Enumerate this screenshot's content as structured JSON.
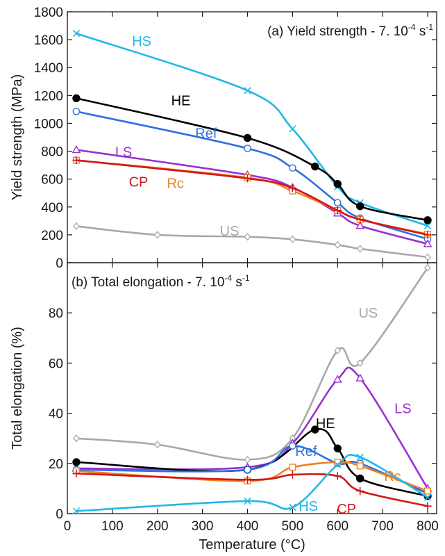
{
  "chart_data": {
    "type": "line",
    "xlabel": "Temperature (°C)",
    "xlim": [
      0,
      820
    ],
    "xticks": [
      0,
      100,
      200,
      300,
      400,
      500,
      600,
      700,
      800
    ],
    "panels": [
      {
        "id": "a",
        "title": "(a) Yield strength - 7. 10",
        "title_exp": "-4",
        "title_suffix": " s",
        "title_suffix_exp": "-1",
        "ylabel": "Yield strength (MPa)",
        "ylim": [
          0,
          1800
        ],
        "yticks": [
          0,
          200,
          400,
          600,
          800,
          1000,
          1200,
          1400,
          1600,
          1800
        ],
        "series": [
          {
            "name": "HS",
            "color": "#1fb8e8",
            "marker": "x",
            "x": [
              20,
              400,
              500,
              600,
              650,
              800
            ],
            "y": [
              1645,
              1235,
              960,
              545,
              430,
              265
            ]
          },
          {
            "name": "HE",
            "color": "#000000",
            "marker": "filled-circle",
            "x": [
              20,
              400,
              550,
              600,
              650,
              800
            ],
            "y": [
              1180,
              895,
              690,
              565,
              405,
              305
            ]
          },
          {
            "name": "Ref",
            "color": "#2f6fe0",
            "marker": "circle",
            "x": [
              20,
              400,
              500,
              600,
              650,
              800
            ],
            "y": [
              1085,
              820,
              680,
              430,
              320,
              170
            ]
          },
          {
            "name": "LS",
            "color": "#9a2fd0",
            "marker": "triangle",
            "x": [
              20,
              400,
              500,
              600,
              650,
              800
            ],
            "y": [
              810,
              630,
              540,
              355,
              265,
              135
            ]
          },
          {
            "name": "Rc",
            "color": "#f08020",
            "marker": "square",
            "x": [
              20,
              400,
              500,
              600,
              650,
              800
            ],
            "y": [
              735,
              610,
              515,
              375,
              310,
              205
            ]
          },
          {
            "name": "CP",
            "color": "#d01818",
            "marker": "plus",
            "x": [
              20,
              400,
              500,
              600,
              650,
              800
            ],
            "y": [
              735,
              605,
              535,
              375,
              310,
              200
            ]
          },
          {
            "name": "US",
            "color": "#a8a8a8",
            "marker": "diamond",
            "x": [
              20,
              200,
              400,
              500,
              600,
              650,
              800
            ],
            "y": [
              262,
              200,
              186,
              168,
              128,
              100,
              40
            ]
          }
        ],
        "labels": [
          {
            "series": "HS",
            "text": "HS",
            "x": 165,
            "y": 1590
          },
          {
            "series": "HE",
            "text": "HE",
            "x": 252,
            "y": 1165
          },
          {
            "series": "Ref",
            "text": "Ref",
            "x": 308,
            "y": 930
          },
          {
            "series": "LS",
            "text": "LS",
            "x": 125,
            "y": 795
          },
          {
            "series": "CP",
            "text": "CP",
            "x": 158,
            "y": 580
          },
          {
            "series": "Rc",
            "text": "Rc",
            "x": 240,
            "y": 570
          },
          {
            "series": "US",
            "text": "US",
            "x": 360,
            "y": 230
          }
        ]
      },
      {
        "id": "b",
        "title": "(b) Total elongation - 7. 10",
        "title_exp": "-4",
        "title_suffix": " s",
        "title_suffix_exp": "-1",
        "ylabel": "Total elongation (%)",
        "ylim": [
          0,
          100
        ],
        "yticks": [
          0,
          20,
          40,
          60,
          80
        ],
        "series": [
          {
            "name": "US",
            "color": "#a8a8a8",
            "marker": "diamond",
            "x": [
              20,
              200,
              400,
              500,
              600,
              650,
              800
            ],
            "y": [
              30,
              27.5,
              21.5,
              30,
              65,
              60,
              98
            ]
          },
          {
            "name": "LS",
            "color": "#9a2fd0",
            "marker": "triangle",
            "x": [
              20,
              400,
              500,
              600,
              650,
              800
            ],
            "y": [
              18,
              18.5,
              28,
              53.5,
              54,
              10
            ]
          },
          {
            "name": "HE",
            "color": "#000000",
            "marker": "filled-circle",
            "x": [
              20,
              400,
              550,
              600,
              650,
              800
            ],
            "y": [
              20.5,
              17.5,
              33.5,
              26,
              14,
              7
            ]
          },
          {
            "name": "Ref",
            "color": "#2f6fe0",
            "marker": "circle",
            "x": [
              20,
              400,
              500,
              600,
              650,
              800
            ],
            "y": [
              17.5,
              17.5,
              27,
              20,
              20,
              8
            ]
          },
          {
            "name": "Rc",
            "color": "#f08020",
            "marker": "square",
            "x": [
              20,
              400,
              500,
              600,
              650,
              800
            ],
            "y": [
              17,
              13,
              18.5,
              20.5,
              19,
              9
            ]
          },
          {
            "name": "CP",
            "color": "#d01818",
            "marker": "plus",
            "x": [
              20,
              400,
              500,
              600,
              650,
              800
            ],
            "y": [
              16,
              13.5,
              15.5,
              15,
              9,
              3
            ]
          },
          {
            "name": "HS",
            "color": "#1fb8e8",
            "marker": "x",
            "x": [
              20,
              400,
              500,
              600,
              650,
              800
            ],
            "y": [
              1,
              5,
              2.5,
              19.5,
              22.5,
              6.5
            ]
          }
        ],
        "labels": [
          {
            "series": "US",
            "text": "US",
            "x": 668,
            "y": 80
          },
          {
            "series": "LS",
            "text": "LS",
            "x": 745,
            "y": 42
          },
          {
            "series": "HE",
            "text": "HE",
            "x": 573,
            "y": 36
          },
          {
            "series": "Ref",
            "text": "Ref",
            "x": 530,
            "y": 25
          },
          {
            "series": "Rc",
            "text": "Rc",
            "x": 722,
            "y": 15
          },
          {
            "series": "HS",
            "text": "HS",
            "x": 535,
            "y": 3
          },
          {
            "series": "CP",
            "text": "CP",
            "x": 620,
            "y": 2
          }
        ]
      }
    ]
  }
}
